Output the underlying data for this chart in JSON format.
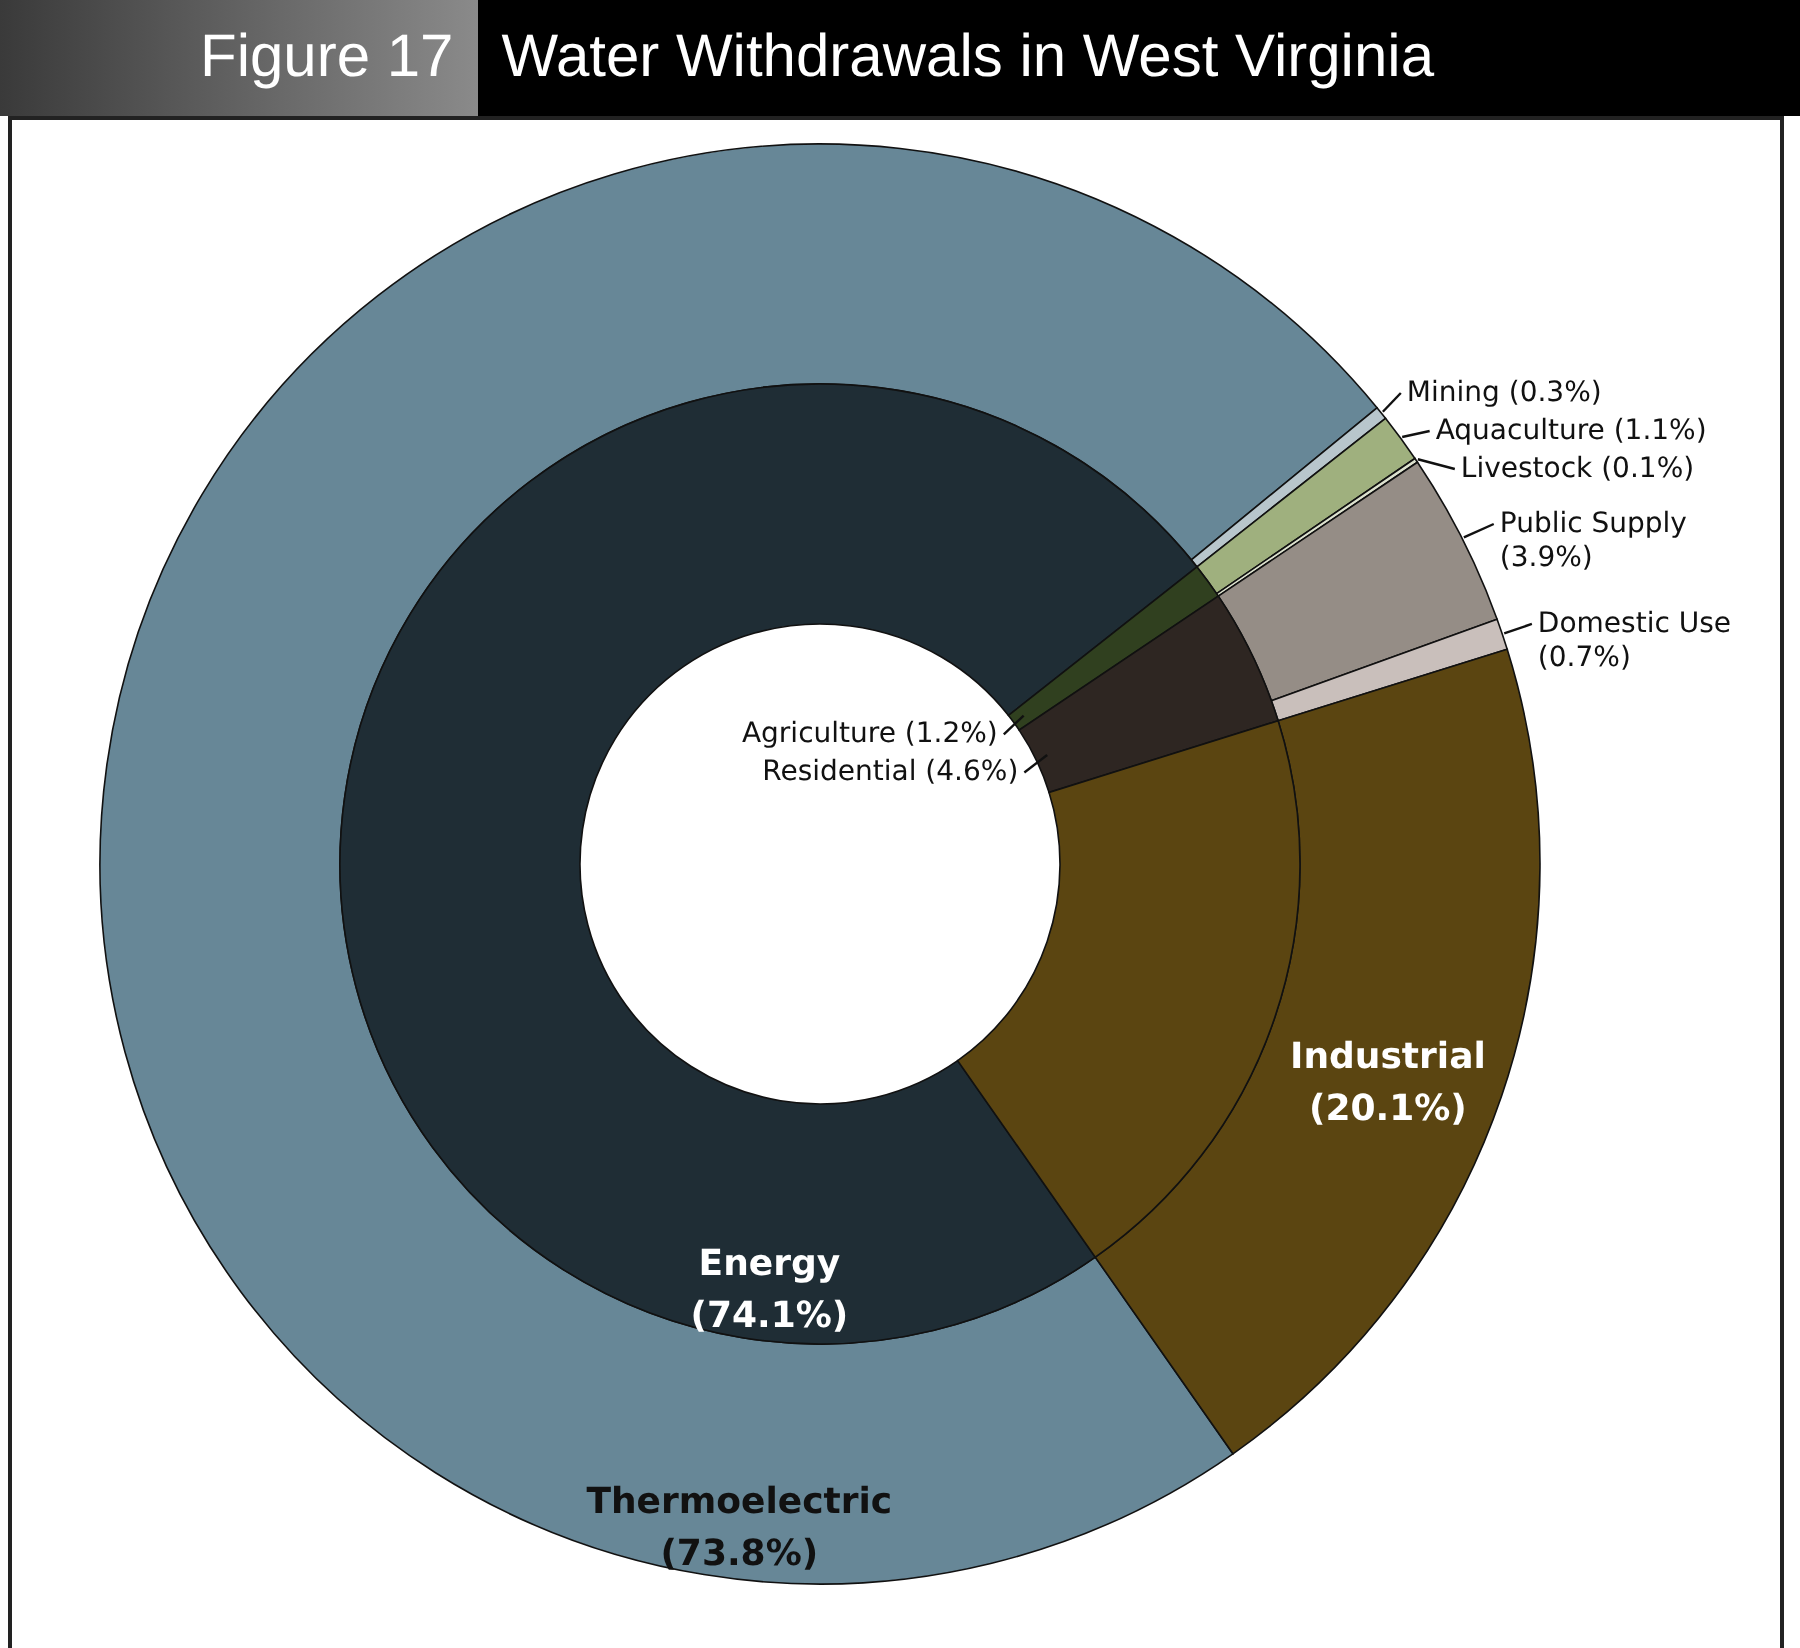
{
  "chart_data": [
    {
      "type": "donut",
      "title": "Water Withdrawals in West Virginia",
      "annotations": [
        "Figure 17"
      ],
      "categories": [
        "Thermoelectric",
        "Mining",
        "Aquaculture",
        "Livestock",
        "Public Supply",
        "Domestic Use",
        "Industrial"
      ],
      "values": [
        73.8,
        0.3,
        1.1,
        0.1,
        3.9,
        0.7,
        20.1
      ],
      "value_labels": [
        "(73.8%)",
        "(0.3%)",
        "(1.1%)",
        "(0.1%)",
        "(3.9%)",
        "(0.7%)",
        "(20.1%)"
      ],
      "colors": [
        "#678797",
        "#b8c6cc",
        "#9fb07e",
        "#dde2cf",
        "#958d86",
        "#c9bfbb",
        "#5b4511"
      ]
    },
    {
      "type": "donut",
      "categories": [
        "Energy",
        "Agriculture",
        "Residential",
        null
      ],
      "values": [
        74.1,
        1.2,
        4.6,
        20.1
      ],
      "value_labels": [
        "(74.1%)",
        "(1.2%)",
        "(4.6%)",
        null
      ],
      "colors": [
        "#1f2d35",
        "#30401f",
        "#2e2622",
        "#5b4511"
      ]
    }
  ]
}
